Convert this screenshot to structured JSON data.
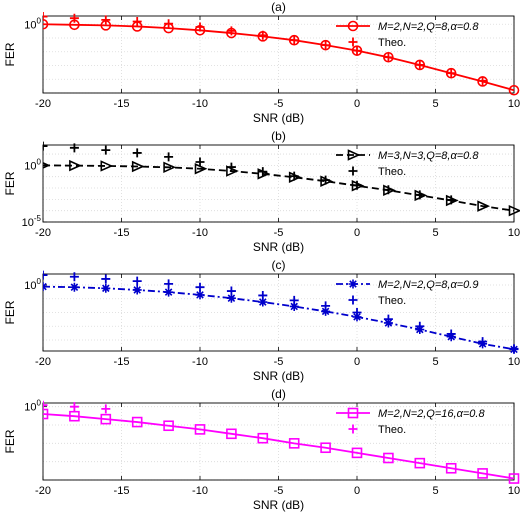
{
  "chart_data": [
    {
      "type": "line",
      "title": "(a)",
      "xlabel": "SNR (dB)",
      "ylabel": "FER",
      "xlim": [
        -20,
        10
      ],
      "x_ticks": [
        -20,
        -15,
        -10,
        -5,
        0,
        5,
        10
      ],
      "x_tick_labels": [
        "-20",
        "-15",
        "-10",
        "-5",
        "0",
        "5",
        "10"
      ],
      "y_scale": "log",
      "ylim_log10": [
        -1.25,
        0.15
      ],
      "y_ticks_log10": [
        0
      ],
      "y_tick_labels": [
        "10^0"
      ],
      "grid": true,
      "legend_position": "top-right",
      "color": "#ff0000",
      "series": [
        {
          "name": "M=2,N=2,Q=8,α=0.8",
          "marker": "circle",
          "line": "solid",
          "x": [
            -20,
            -18,
            -16,
            -14,
            -12,
            -10,
            -8,
            -6,
            -4,
            -2,
            0,
            2,
            4,
            6,
            8,
            10
          ],
          "y_log10": [
            0.0,
            -0.01,
            -0.02,
            -0.04,
            -0.07,
            -0.11,
            -0.16,
            -0.22,
            -0.29,
            -0.38,
            -0.48,
            -0.6,
            -0.74,
            -0.89,
            -1.04,
            -1.2
          ]
        },
        {
          "name": "Theo.",
          "marker": "plus",
          "line": "none",
          "x": [
            -20,
            -18,
            -16,
            -14,
            -12,
            -10,
            -8,
            -6,
            -4,
            -2,
            0,
            2,
            4,
            6,
            8
          ],
          "y_log10": [
            0.14,
            0.11,
            0.08,
            0.05,
            0.01,
            -0.05,
            -0.12,
            -0.2,
            -0.29,
            -0.38,
            -0.48,
            -0.6,
            -0.74,
            -0.89,
            -1.03
          ]
        }
      ]
    },
    {
      "type": "line",
      "title": "(b)",
      "xlabel": "SNR (dB)",
      "ylabel": "FER",
      "xlim": [
        -20,
        10
      ],
      "x_ticks": [
        -20,
        -15,
        -10,
        -5,
        0,
        5,
        10
      ],
      "x_tick_labels": [
        "-20",
        "-15",
        "-10",
        "-5",
        "0",
        "5",
        "10"
      ],
      "y_scale": "log",
      "ylim_log10": [
        -5,
        1.8
      ],
      "y_ticks_log10": [
        -5,
        0
      ],
      "y_tick_labels": [
        "10^-5",
        "10^0"
      ],
      "grid": true,
      "legend_position": "top-right",
      "color": "#000000",
      "series": [
        {
          "name": "M=3,N=3,Q=8,α=0.8",
          "marker": "triangle-right",
          "line": "dashed",
          "x": [
            -20,
            -18,
            -16,
            -14,
            -12,
            -10,
            -8,
            -6,
            -4,
            -2,
            0,
            2,
            4,
            6,
            8,
            10
          ],
          "y_log10": [
            0.0,
            -0.02,
            -0.05,
            -0.1,
            -0.17,
            -0.3,
            -0.5,
            -0.75,
            -1.05,
            -1.4,
            -1.8,
            -2.2,
            -2.65,
            -3.1,
            -3.6,
            -4.0
          ]
        },
        {
          "name": "Theo.",
          "marker": "plus",
          "line": "none",
          "x": [
            -20,
            -18,
            -16,
            -14,
            -12,
            -10,
            -8,
            -6,
            -4,
            -2,
            0,
            2,
            4,
            6
          ],
          "y_log10": [
            1.7,
            1.55,
            1.35,
            1.1,
            0.75,
            0.3,
            -0.15,
            -0.55,
            -0.95,
            -1.3,
            -1.75,
            -2.15,
            -2.6,
            -3.05
          ]
        }
      ]
    },
    {
      "type": "line",
      "title": "(c)",
      "xlabel": "SNR (dB)",
      "ylabel": "FER",
      "xlim": [
        -20,
        10
      ],
      "x_ticks": [
        -20,
        -15,
        -10,
        -5,
        0,
        5,
        10
      ],
      "x_tick_labels": [
        "-20",
        "-15",
        "-10",
        "-5",
        "0",
        "5",
        "10"
      ],
      "y_scale": "log",
      "ylim_log10": [
        -1.2,
        0.2
      ],
      "y_ticks_log10": [
        0
      ],
      "y_tick_labels": [
        "10^0"
      ],
      "grid": true,
      "legend_position": "top-right",
      "color": "#0000cc",
      "series": [
        {
          "name": "M=2,N=2,Q=8,α=0.9",
          "marker": "asterisk",
          "line": "dash-dot",
          "x": [
            -20,
            -18,
            -16,
            -14,
            -12,
            -10,
            -8,
            -6,
            -4,
            -2,
            0,
            2,
            4,
            6,
            8,
            10
          ],
          "y_log10": [
            -0.03,
            -0.04,
            -0.06,
            -0.09,
            -0.13,
            -0.18,
            -0.24,
            -0.31,
            -0.39,
            -0.48,
            -0.58,
            -0.69,
            -0.81,
            -0.94,
            -1.07,
            -1.17
          ]
        },
        {
          "name": "Theo.",
          "marker": "plus",
          "line": "none",
          "x": [
            -20,
            -18,
            -16,
            -14,
            -12,
            -10,
            -8,
            -6,
            -4,
            -2,
            0,
            2,
            4,
            6,
            8,
            10
          ],
          "y_log10": [
            0.18,
            0.15,
            0.11,
            0.07,
            0.02,
            -0.04,
            -0.11,
            -0.19,
            -0.28,
            -0.38,
            -0.5,
            -0.62,
            -0.75,
            -0.89,
            -1.03,
            -1.16
          ]
        }
      ]
    },
    {
      "type": "line",
      "title": "(d)",
      "xlabel": "SNR (dB)",
      "ylabel": "FER",
      "xlim": [
        -20,
        10
      ],
      "x_ticks": [
        -20,
        -15,
        -10,
        -5,
        0,
        5,
        10
      ],
      "x_tick_labels": [
        "-20",
        "-15",
        "-10",
        "-5",
        "0",
        "5",
        "10"
      ],
      "y_scale": "log",
      "ylim_log10": [
        -1.0,
        0.05
      ],
      "y_ticks_log10": [
        0
      ],
      "y_tick_labels": [
        "10^0"
      ],
      "grid": true,
      "legend_position": "top-right",
      "color": "#ff00ff",
      "series": [
        {
          "name": "M=2,N=2,Q=16,α=0.8",
          "marker": "square",
          "line": "solid",
          "x": [
            -20,
            -18,
            -16,
            -14,
            -12,
            -10,
            -8,
            -6,
            -4,
            -2,
            0,
            2,
            4,
            6,
            8,
            10
          ],
          "y_log10": [
            -0.1,
            -0.13,
            -0.17,
            -0.21,
            -0.26,
            -0.31,
            -0.37,
            -0.43,
            -0.5,
            -0.56,
            -0.63,
            -0.7,
            -0.77,
            -0.84,
            -0.91,
            -0.98
          ]
        },
        {
          "name": "Theo.",
          "marker": "plus",
          "line": "none",
          "x": [
            -20,
            -18,
            -16
          ],
          "y_log10": [
            0.02,
            0.0,
            -0.03
          ]
        }
      ]
    }
  ]
}
